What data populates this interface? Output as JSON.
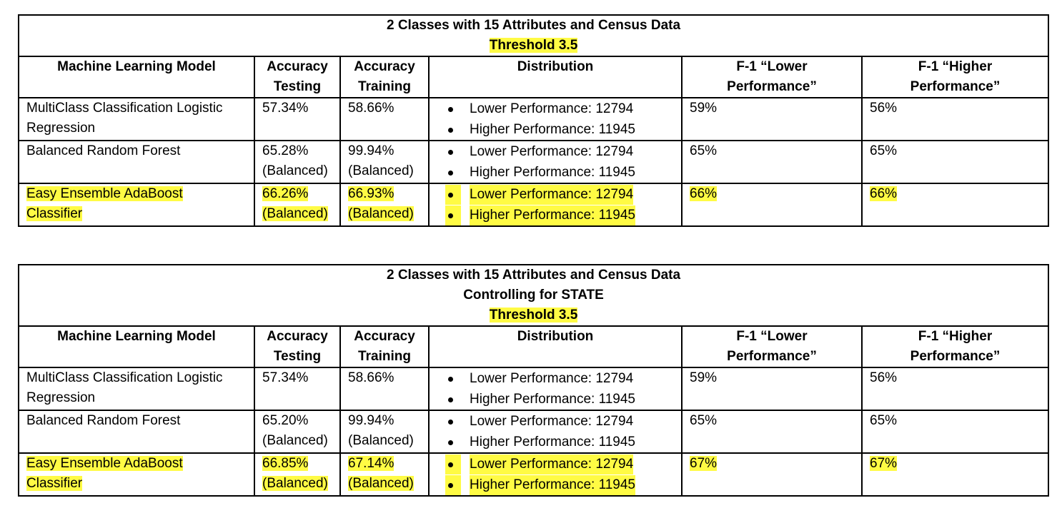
{
  "tables": [
    {
      "title_lines": [
        "2 Classes with 15 Attributes and Census Data"
      ],
      "threshold": "Threshold 3.5",
      "headers": {
        "model": "Machine Learning Model",
        "acc_test": [
          "Accuracy",
          "Testing"
        ],
        "acc_train": [
          "Accuracy",
          "Training"
        ],
        "distribution": "Distribution",
        "f1_lower": [
          "F-1 “Lower",
          "Performance”"
        ],
        "f1_higher": [
          "F-1 “Higher",
          "Performance”"
        ]
      },
      "rows": [
        {
          "model": [
            "MultiClass Classification Logistic",
            "Regression"
          ],
          "acc_test": [
            "57.34%"
          ],
          "acc_train": [
            "58.66%"
          ],
          "distribution": [
            "Lower Performance: 12794",
            "Higher Performance: 11945"
          ],
          "f1_lower": "59%",
          "f1_higher": "56%",
          "highlighted": false
        },
        {
          "model": [
            "Balanced Random Forest"
          ],
          "acc_test": [
            "65.28%",
            "(Balanced)"
          ],
          "acc_train": [
            "99.94%",
            "(Balanced)"
          ],
          "distribution": [
            "Lower Performance: 12794",
            "Higher Performance: 11945"
          ],
          "f1_lower": "65%",
          "f1_higher": "65%",
          "highlighted": false
        },
        {
          "model": [
            "Easy Ensemble AdaBoost",
            "Classifier"
          ],
          "acc_test": [
            "66.26%",
            "(Balanced)"
          ],
          "acc_train": [
            "66.93%",
            "(Balanced)"
          ],
          "distribution": [
            "Lower Performance: 12794",
            "Higher Performance: 11945"
          ],
          "f1_lower": "66%",
          "f1_higher": "66%",
          "highlighted": true
        }
      ]
    },
    {
      "title_lines": [
        "2 Classes with 15 Attributes and Census Data",
        "Controlling for STATE"
      ],
      "threshold": "Threshold 3.5",
      "headers": {
        "model": "Machine Learning Model",
        "acc_test": [
          "Accuracy",
          "Testing"
        ],
        "acc_train": [
          "Accuracy",
          "Training"
        ],
        "distribution": "Distribution",
        "f1_lower": [
          "F-1 “Lower",
          "Performance”"
        ],
        "f1_higher": [
          "F-1 “Higher",
          "Performance”"
        ]
      },
      "rows": [
        {
          "model": [
            "MultiClass Classification Logistic",
            "Regression"
          ],
          "acc_test": [
            "57.34%"
          ],
          "acc_train": [
            "58.66%"
          ],
          "distribution": [
            "Lower Performance: 12794",
            "Higher Performance: 11945"
          ],
          "f1_lower": "59%",
          "f1_higher": "56%",
          "highlighted": false
        },
        {
          "model": [
            "Balanced Random Forest"
          ],
          "acc_test": [
            "65.20%",
            "(Balanced)"
          ],
          "acc_train": [
            "99.94%",
            "(Balanced)"
          ],
          "distribution": [
            "Lower Performance: 12794",
            "Higher Performance: 11945"
          ],
          "f1_lower": "65%",
          "f1_higher": "65%",
          "highlighted": false
        },
        {
          "model": [
            "Easy Ensemble AdaBoost",
            "Classifier"
          ],
          "acc_test": [
            "66.85%",
            "(Balanced)"
          ],
          "acc_train": [
            "67.14%",
            "(Balanced)"
          ],
          "distribution": [
            "Lower Performance: 12794",
            "Higher Performance: 11945"
          ],
          "f1_lower": "67%",
          "f1_higher": "67%",
          "highlighted": true
        }
      ]
    }
  ],
  "highlight_color": "#fffb44"
}
